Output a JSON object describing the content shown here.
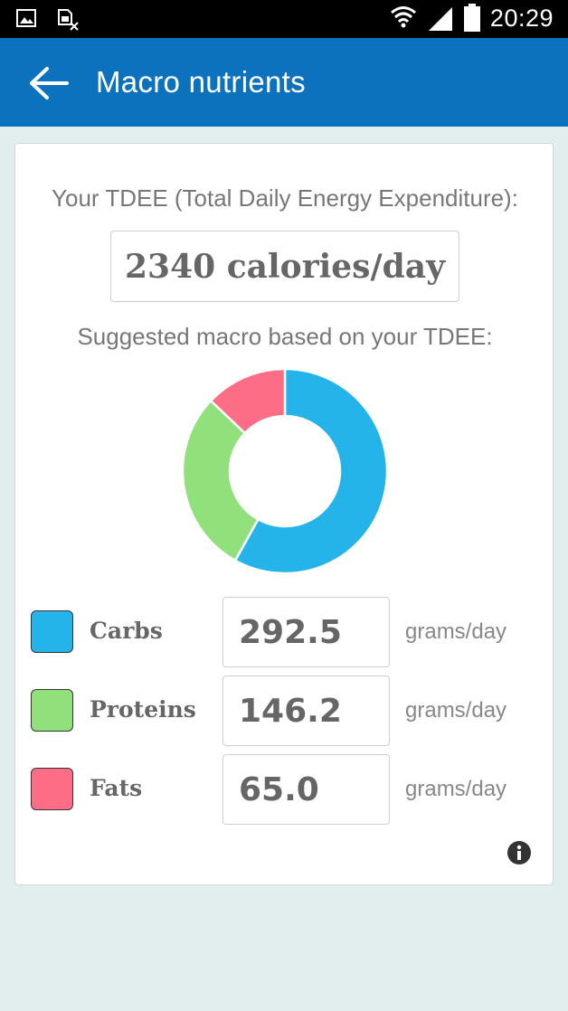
{
  "status_bar": {
    "time": "20:29",
    "icons": [
      "gallery-icon",
      "sim-card-off-icon",
      "wifi-icon",
      "signal-icon",
      "battery-icon"
    ]
  },
  "app_bar": {
    "title": "Macro nutrients",
    "back_icon": "back-arrow-icon",
    "color": "#0d72bd"
  },
  "card": {
    "tdee_label": "Your TDEE (Total Daily Energy Expenditure):",
    "tdee_value": "2340 calories/day",
    "suggest_label": "Suggested macro based on your TDEE:",
    "info_icon": "info-icon"
  },
  "macros": [
    {
      "name": "Carbs",
      "value": "292.5",
      "unit": "grams/day",
      "color": "#24b4ea"
    },
    {
      "name": "Proteins",
      "value": "146.2",
      "unit": "grams/day",
      "color": "#90e07c"
    },
    {
      "name": "Fats",
      "value": "65.0",
      "unit": "grams/day",
      "color": "#fd6d86"
    }
  ],
  "chart_data": {
    "type": "pie",
    "categories": [
      "Carbs",
      "Proteins",
      "Fats"
    ],
    "values": [
      292.5,
      146.2,
      65.0
    ],
    "colors": [
      "#24b4ea",
      "#90e07c",
      "#fd6d86"
    ],
    "donut": true
  }
}
